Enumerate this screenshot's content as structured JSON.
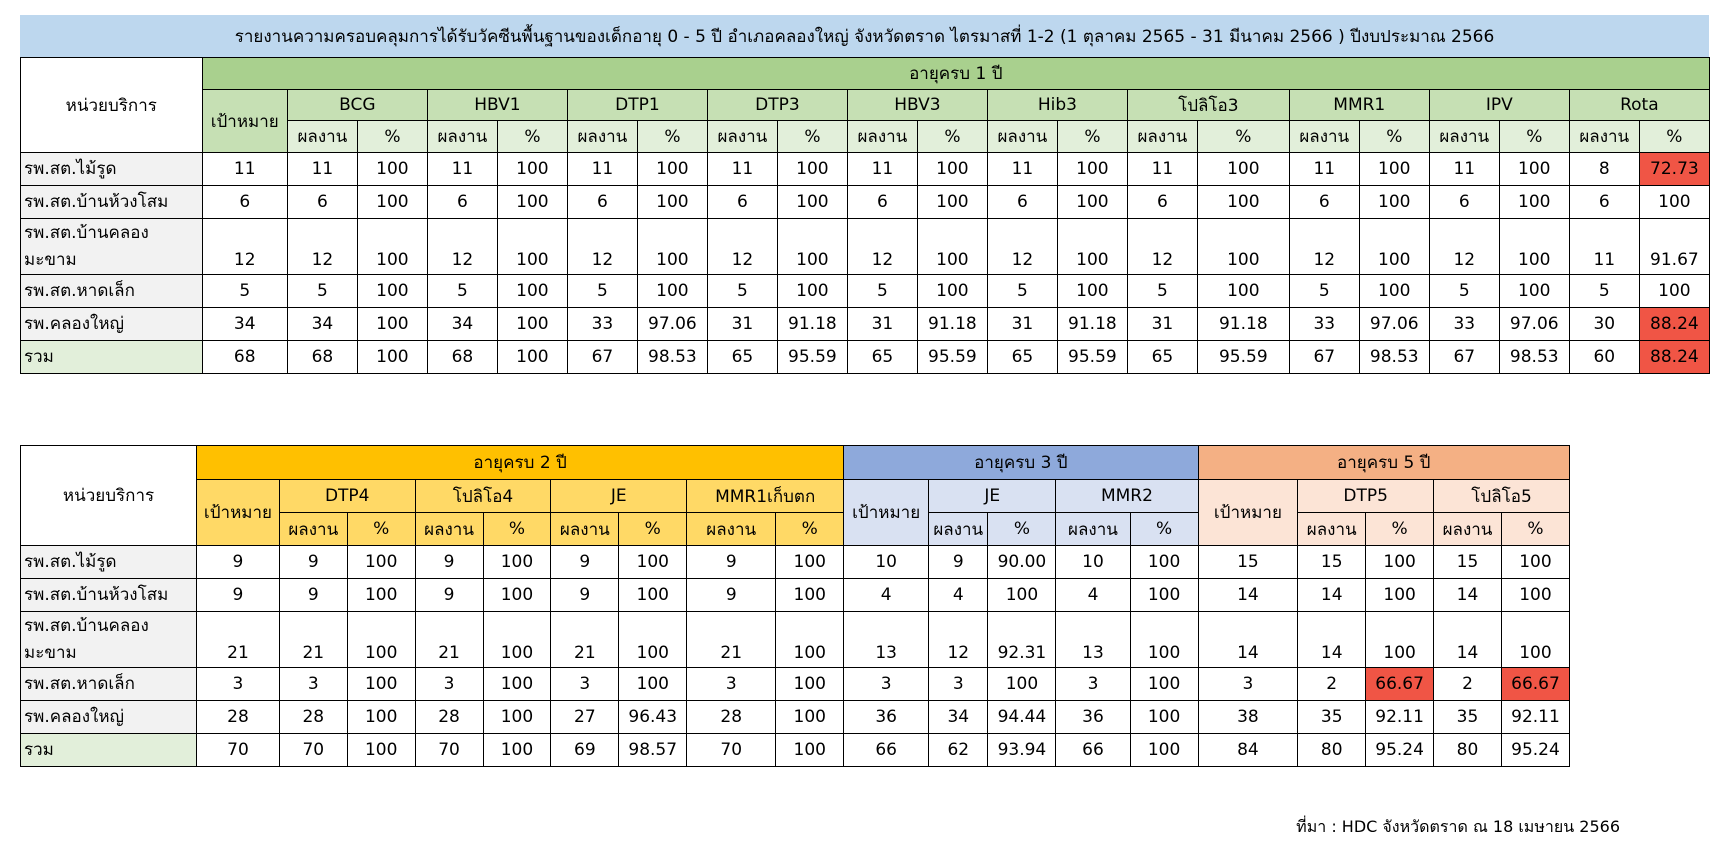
{
  "title": "รายงานความครอบคลุมการได้รับวัคซีนพื้นฐานของเด็กอายุ 0 - 5 ปี อำเภอคลองใหญ่ จังหวัดตราด ไตรมาสที่ 1-2 (1 ตุลาคม 2565 - 31 มีนาคม 2566 ) ปีงบประมาณ 2566",
  "source": "ที่มา : HDC จังหวัดตราด ณ 18 เมษายน 2566",
  "labels": {
    "unit": "หน่วยบริการ",
    "target": "เป้าหมาย",
    "result": "ผลงาน",
    "percent": "%"
  },
  "table1": {
    "group": "อายุครบ 1 ปี",
    "vaccines": [
      "BCG",
      "HBV1",
      "DTP1",
      "DTP3",
      "HBV3",
      "Hib3",
      "โปลิโอ3",
      "MMR1",
      "IPV",
      "Rota"
    ],
    "rows": [
      {
        "unit": "รพ.สต.ไม้รูด",
        "target": "11",
        "cells": [
          "11",
          "100",
          "11",
          "100",
          "11",
          "100",
          "11",
          "100",
          "11",
          "100",
          "11",
          "100",
          "11",
          "100",
          "11",
          "100",
          "11",
          "100",
          "8",
          "72.73"
        ]
      },
      {
        "unit": "รพ.สต.บ้านห้วงโสม",
        "target": "6",
        "cells": [
          "6",
          "100",
          "6",
          "100",
          "6",
          "100",
          "6",
          "100",
          "6",
          "100",
          "6",
          "100",
          "6",
          "100",
          "6",
          "100",
          "6",
          "100",
          "6",
          "100"
        ]
      },
      {
        "unit": "รพ.สต.บ้านคลองมะขาม",
        "target": "12",
        "cells": [
          "12",
          "100",
          "12",
          "100",
          "12",
          "100",
          "12",
          "100",
          "12",
          "100",
          "12",
          "100",
          "12",
          "100",
          "12",
          "100",
          "12",
          "100",
          "11",
          "91.67"
        ]
      },
      {
        "unit": "รพ.สต.หาดเล็ก",
        "target": "5",
        "cells": [
          "5",
          "100",
          "5",
          "100",
          "5",
          "100",
          "5",
          "100",
          "5",
          "100",
          "5",
          "100",
          "5",
          "100",
          "5",
          "100",
          "5",
          "100",
          "5",
          "100"
        ]
      },
      {
        "unit": "รพ.คลองใหญ่",
        "target": "34",
        "cells": [
          "34",
          "100",
          "34",
          "100",
          "33",
          "97.06",
          "31",
          "91.18",
          "31",
          "91.18",
          "31",
          "91.18",
          "31",
          "91.18",
          "33",
          "97.06",
          "33",
          "97.06",
          "30",
          "88.24"
        ]
      },
      {
        "unit": "รวม",
        "target": "68",
        "cells": [
          "68",
          "100",
          "68",
          "100",
          "67",
          "98.53",
          "65",
          "95.59",
          "65",
          "95.59",
          "65",
          "95.59",
          "65",
          "95.59",
          "67",
          "98.53",
          "67",
          "98.53",
          "60",
          "88.24"
        ]
      }
    ]
  },
  "table2": {
    "groups": [
      "อายุครบ 2 ปี",
      "อายุครบ 3 ปี",
      "อายุครบ 5 ปี"
    ],
    "vaccines2": [
      "DTP4",
      "โปลิโอ4",
      "JE",
      "MMR1เก็บตก"
    ],
    "vaccines3": [
      "JE",
      "MMR2"
    ],
    "vaccines5": [
      "DTP5",
      "โปลิโอ5"
    ],
    "rows": [
      {
        "unit": "รพ.สต.ไม้รูด",
        "t2": "9",
        "c2": [
          "9",
          "100",
          "9",
          "100",
          "9",
          "100",
          "9",
          "100"
        ],
        "t3": "10",
        "c3": [
          "9",
          "90.00",
          "10",
          "100"
        ],
        "t5": "15",
        "c5": [
          "15",
          "100",
          "15",
          "100"
        ]
      },
      {
        "unit": "รพ.สต.บ้านห้วงโสม",
        "t2": "9",
        "c2": [
          "9",
          "100",
          "9",
          "100",
          "9",
          "100",
          "9",
          "100"
        ],
        "t3": "4",
        "c3": [
          "4",
          "100",
          "4",
          "100"
        ],
        "t5": "14",
        "c5": [
          "14",
          "100",
          "14",
          "100"
        ]
      },
      {
        "unit": "รพ.สต.บ้านคลองมะขาม",
        "t2": "21",
        "c2": [
          "21",
          "100",
          "21",
          "100",
          "21",
          "100",
          "21",
          "100"
        ],
        "t3": "13",
        "c3": [
          "12",
          "92.31",
          "13",
          "100"
        ],
        "t5": "14",
        "c5": [
          "14",
          "100",
          "14",
          "100"
        ]
      },
      {
        "unit": "รพ.สต.หาดเล็ก",
        "t2": "3",
        "c2": [
          "3",
          "100",
          "3",
          "100",
          "3",
          "100",
          "3",
          "100"
        ],
        "t3": "3",
        "c3": [
          "3",
          "100",
          "3",
          "100"
        ],
        "t5": "3",
        "c5": [
          "2",
          "66.67",
          "2",
          "66.67"
        ]
      },
      {
        "unit": "รพ.คลองใหญ่",
        "t2": "28",
        "c2": [
          "28",
          "100",
          "28",
          "100",
          "27",
          "96.43",
          "28",
          "100"
        ],
        "t3": "36",
        "c3": [
          "34",
          "94.44",
          "36",
          "100"
        ],
        "t5": "38",
        "c5": [
          "35",
          "92.11",
          "35",
          "92.11"
        ]
      },
      {
        "unit": "รวม",
        "t2": "70",
        "c2": [
          "70",
          "100",
          "70",
          "100",
          "69",
          "98.57",
          "70",
          "100"
        ],
        "t3": "66",
        "c3": [
          "62",
          "93.94",
          "66",
          "100"
        ],
        "t5": "84",
        "c5": [
          "80",
          "95.24",
          "80",
          "95.24"
        ]
      }
    ]
  },
  "colors": {
    "header_blue": "#bdd7ee",
    "age1_green": "#a9d08e",
    "age2_gold": "#ffc000",
    "age3_blue": "#8ea9db",
    "age5_peach": "#f4b084",
    "alert_red": "#f05545"
  }
}
